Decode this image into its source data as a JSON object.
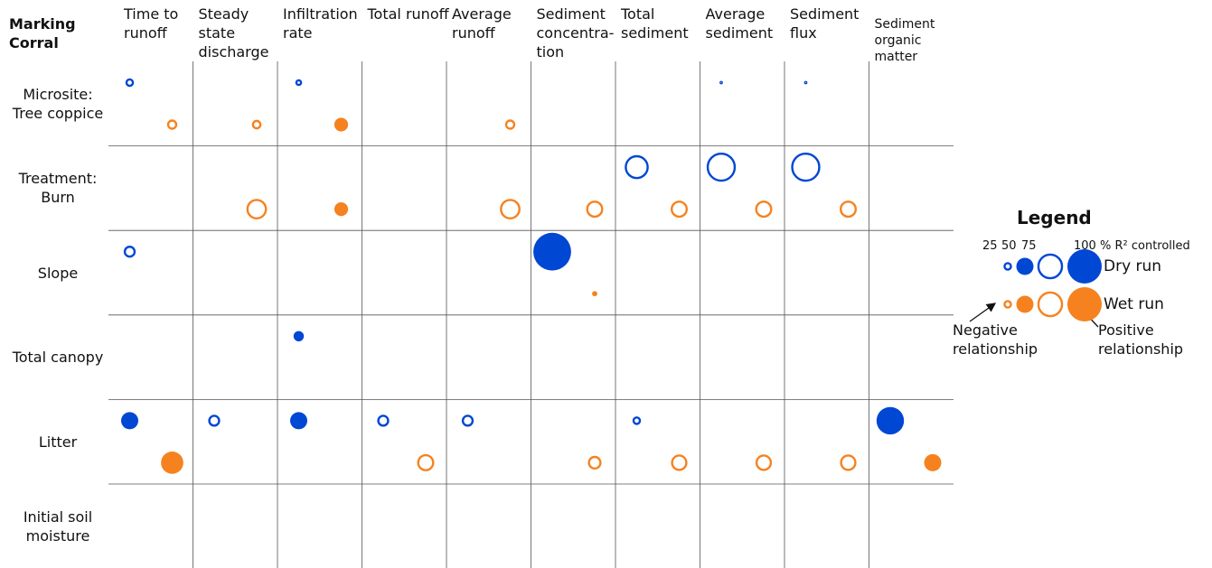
{
  "chart_data": {
    "type": "bubble_matrix",
    "corner_label": "Marking Corral",
    "columns": [
      "Time to runoff",
      "Steady state discharge",
      "Infiltration rate",
      "Total runoff",
      "Average runoff",
      "Sediment concentra­tion",
      "Total sediment",
      "Average sediment",
      "Sediment flux",
      "Sediment organic matter"
    ],
    "rows": [
      "Microsite: Tree coppice",
      "Treatment: Burn",
      "Slope",
      "Total canopy",
      "Litter",
      "Initial soil moisture"
    ],
    "series": [
      {
        "name": "Dry run",
        "color": "#0047d4",
        "values": [
          [
            -25,
            null,
            -20,
            null,
            null,
            null,
            null,
            -10,
            -10,
            null
          ],
          [
            null,
            null,
            null,
            null,
            null,
            null,
            -70,
            -85,
            -85,
            null
          ],
          [
            -35,
            null,
            null,
            null,
            null,
            110,
            null,
            null,
            null,
            null
          ],
          [
            null,
            null,
            30,
            null,
            null,
            null,
            null,
            null,
            null,
            null
          ],
          [
            50,
            -35,
            50,
            -35,
            -35,
            null,
            -25,
            null,
            null,
            80
          ],
          [
            null,
            null,
            null,
            null,
            null,
            null,
            null,
            null,
            null,
            null
          ]
        ]
      },
      {
        "name": "Wet run",
        "color": "#f5821f",
        "values": [
          [
            -30,
            -28,
            40,
            null,
            -30,
            null,
            null,
            null,
            null,
            null
          ],
          [
            null,
            -60,
            40,
            null,
            -60,
            -50,
            -50,
            -50,
            -50,
            null
          ],
          [
            null,
            null,
            null,
            null,
            null,
            15,
            null,
            null,
            null,
            null
          ],
          [
            null,
            null,
            null,
            null,
            null,
            null,
            null,
            null,
            null,
            null
          ],
          [
            65,
            null,
            null,
            -50,
            null,
            -40,
            -48,
            -48,
            -48,
            50
          ],
          [
            null,
            null,
            null,
            null,
            null,
            null,
            null,
            null,
            null,
            null
          ]
        ]
      }
    ],
    "legend": {
      "title": "Legend",
      "sizes": [
        25,
        50,
        75,
        100
      ],
      "size_unit": "% R² controlled",
      "negative_label": "Negative relationship",
      "positive_label": "Positive relationship"
    }
  }
}
